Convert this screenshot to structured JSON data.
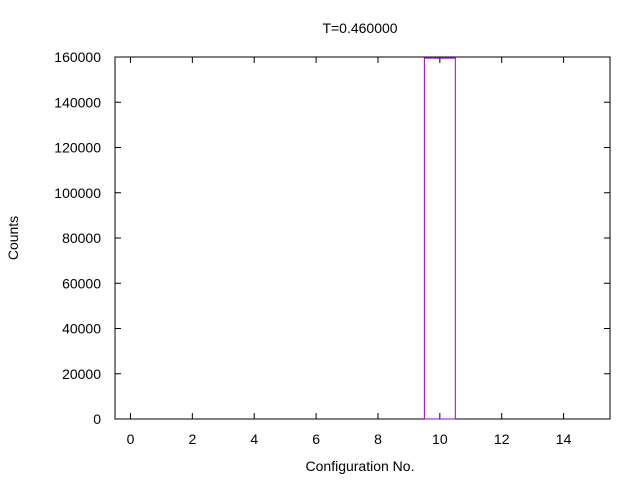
{
  "chart_data": {
    "type": "bar",
    "title": "T=0.460000",
    "xlabel": "Configuration No.",
    "ylabel": "Counts",
    "xlim": [
      -0.5,
      15.5
    ],
    "ylim": [
      0,
      160000
    ],
    "x_ticks": [
      0,
      2,
      4,
      6,
      8,
      10,
      12,
      14
    ],
    "y_ticks": [
      0,
      20000,
      40000,
      60000,
      80000,
      100000,
      120000,
      140000,
      160000
    ],
    "bar_width": 1,
    "bar_style": "outline",
    "grid": false,
    "series": [
      {
        "color": "#9400d3",
        "x": [
          10
        ],
        "values": [
          159500
        ]
      }
    ]
  }
}
